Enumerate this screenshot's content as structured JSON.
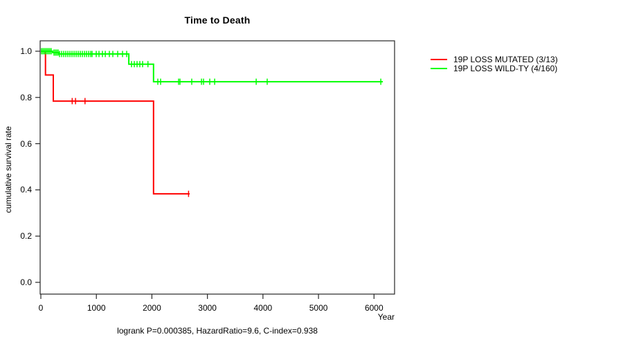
{
  "title": "Time to Death",
  "xlabel": "Year",
  "ylabel": "cumulative survival rate",
  "footer": "logrank P=0.000385, HazardRatio=9.6, C-index=0.938",
  "colors": {
    "mutated": "#ff0000",
    "wildtype": "#00ff00",
    "axis": "#262626",
    "text": "#000000",
    "background": "#ffffff"
  },
  "legend": [
    {
      "id": "mutated",
      "label": "19P LOSS MUTATED (3/13)",
      "color": "#ff0000"
    },
    {
      "id": "wildtype",
      "label": "19P LOSS WILD-TY (4/160)",
      "color": "#00ff00"
    }
  ],
  "chart_data": {
    "type": "line",
    "subtype": "kaplan-meier-step-survival",
    "title": "Time to Death",
    "xlabel": "Year",
    "ylabel": "cumulative survival rate",
    "xlim": [
      0,
      6350
    ],
    "ylim": [
      0,
      1
    ],
    "xticks": [
      0,
      1000,
      2000,
      3000,
      4000,
      5000,
      6000
    ],
    "yticks": [
      0.0,
      0.2,
      0.4,
      0.6,
      0.8,
      1.0
    ],
    "grid": false,
    "legend_position": "right-outside",
    "annotation": "logrank P=0.000385, HazardRatio=9.6, C-index=0.938",
    "series": [
      {
        "id": "mutated",
        "name": "19P LOSS MUTATED (3/13)",
        "color": "#ff0000",
        "steps": [
          [
            0,
            1.0
          ],
          [
            84,
            1.0
          ],
          [
            84,
            0.897
          ],
          [
            224,
            0.897
          ],
          [
            224,
            0.784
          ],
          [
            2030,
            0.784
          ],
          [
            2030,
            0.383
          ],
          [
            2680,
            0.383
          ]
        ],
        "censors": [
          [
            565,
            0.784
          ],
          [
            625,
            0.784
          ],
          [
            795,
            0.784
          ],
          [
            2660,
            0.383
          ]
        ]
      },
      {
        "id": "wildtype",
        "name": "19P LOSS WILD-TY (4/160)",
        "color": "#00ff00",
        "steps": [
          [
            0,
            1.0
          ],
          [
            212,
            1.0
          ],
          [
            212,
            0.994
          ],
          [
            324,
            0.994
          ],
          [
            324,
            0.988
          ],
          [
            1585,
            0.988
          ],
          [
            1585,
            0.944
          ],
          [
            2030,
            0.944
          ],
          [
            2030,
            0.868
          ],
          [
            6160,
            0.868
          ]
        ],
        "censors": [
          [
            12,
            1.0
          ],
          [
            37,
            1.0
          ],
          [
            62,
            1.0
          ],
          [
            87,
            1.0
          ],
          [
            112,
            1.0
          ],
          [
            137,
            1.0
          ],
          [
            162,
            1.0
          ],
          [
            187,
            1.0
          ],
          [
            237,
            0.994
          ],
          [
            262,
            0.994
          ],
          [
            287,
            0.994
          ],
          [
            312,
            0.994
          ],
          [
            337,
            0.988
          ],
          [
            374,
            0.988
          ],
          [
            411,
            0.988
          ],
          [
            449,
            0.988
          ],
          [
            486,
            0.988
          ],
          [
            523,
            0.988
          ],
          [
            561,
            0.988
          ],
          [
            598,
            0.988
          ],
          [
            636,
            0.988
          ],
          [
            673,
            0.988
          ],
          [
            711,
            0.988
          ],
          [
            748,
            0.988
          ],
          [
            786,
            0.988
          ],
          [
            823,
            0.988
          ],
          [
            861,
            0.988
          ],
          [
            898,
            0.988
          ],
          [
            923,
            0.988
          ],
          [
            997,
            0.988
          ],
          [
            1047,
            0.988
          ],
          [
            1110,
            0.988
          ],
          [
            1160,
            0.988
          ],
          [
            1234,
            0.988
          ],
          [
            1297,
            0.988
          ],
          [
            1384,
            0.988
          ],
          [
            1471,
            0.988
          ],
          [
            1546,
            0.988
          ],
          [
            1633,
            0.944
          ],
          [
            1683,
            0.944
          ],
          [
            1733,
            0.944
          ],
          [
            1783,
            0.944
          ],
          [
            1833,
            0.944
          ],
          [
            1929,
            0.944
          ],
          [
            2107,
            0.868
          ],
          [
            2157,
            0.868
          ],
          [
            2481,
            0.868
          ],
          [
            2506,
            0.868
          ],
          [
            2718,
            0.868
          ],
          [
            2893,
            0.868
          ],
          [
            2930,
            0.868
          ],
          [
            3042,
            0.868
          ],
          [
            3130,
            0.868
          ],
          [
            3878,
            0.868
          ],
          [
            4077,
            0.868
          ],
          [
            6122,
            0.868
          ]
        ]
      }
    ]
  }
}
